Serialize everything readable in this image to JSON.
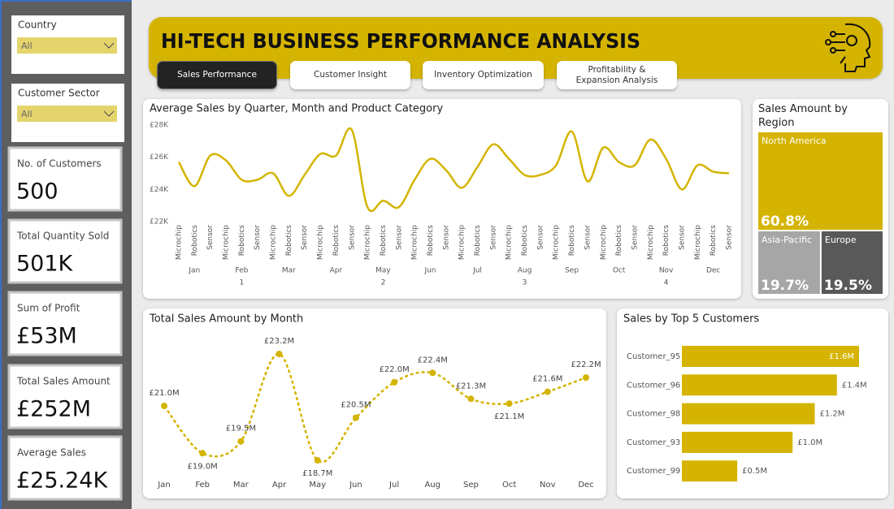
{
  "header": {
    "title": "HI-TECH BUSINESS PERFORMANCE ANALYSIS"
  },
  "tabs": [
    "Sales Performance",
    "Customer Insight",
    "Inventory Optimization",
    "Profitability & Expansion Analysis"
  ],
  "filters": [
    {
      "label": "Country",
      "value": "All"
    },
    {
      "label": "Customer Sector",
      "value": "All"
    }
  ],
  "kpis": [
    {
      "label": "No. of Customers",
      "value": "500"
    },
    {
      "label": "Total Quantity Sold",
      "value": "501K"
    },
    {
      "label": "Sum of Profit",
      "value": "£53M"
    },
    {
      "label": "Total Sales Amount",
      "value": "£252M"
    },
    {
      "label": "Average Sales",
      "value": "£25.24K"
    }
  ],
  "chart_data": [
    {
      "type": "line",
      "title": "Average Sales by Quarter, Month and Product Category",
      "color": "#d4b400",
      "categories": [
        "Microchip",
        "Robotics",
        "Sensor",
        "Microchip",
        "Robotics",
        "Sensor",
        "Microchip",
        "Robotics",
        "Sensor",
        "Microchip",
        "Robotics",
        "Sensor",
        "Microchip",
        "Robotics",
        "Sensor",
        "Microchip",
        "Robotics",
        "Sensor",
        "Microchip",
        "Robotics",
        "Sensor",
        "Microchip",
        "Robotics",
        "Sensor",
        "Microchip",
        "Robotics",
        "Sensor",
        "Microchip",
        "Robotics",
        "Sensor",
        "Microchip",
        "Robotics",
        "Sensor",
        "Microchip",
        "Robotics",
        "Sensor"
      ],
      "months": [
        "Jan",
        "Feb",
        "Mar",
        "Apr",
        "May",
        "Jun",
        "Jul",
        "Aug",
        "Sep",
        "Oct",
        "Nov",
        "Dec"
      ],
      "quarters": [
        "1",
        "2",
        "3",
        "4"
      ],
      "values": [
        25700,
        24200,
        26100,
        25800,
        24600,
        24600,
        25000,
        23600,
        24900,
        26200,
        26100,
        27700,
        22900,
        23300,
        22900,
        24600,
        25900,
        25200,
        24100,
        25400,
        26800,
        25900,
        24900,
        24900,
        25500,
        27600,
        24500,
        26600,
        25700,
        25500,
        27100,
        25900,
        24000,
        25500,
        25100,
        25000
      ],
      "ylim": [
        22000,
        28000
      ],
      "yticks": [
        {
          "value": 22000,
          "label": "£22K"
        },
        {
          "value": 24000,
          "label": "£24K"
        },
        {
          "value": 26000,
          "label": "£26K"
        },
        {
          "value": 28000,
          "label": "£28K"
        }
      ]
    },
    {
      "type": "treemap",
      "title": "Sales Amount by Region",
      "categories": [
        "North America",
        "Asia-Pacific",
        "Europe"
      ],
      "values": [
        60.8,
        19.7,
        19.5
      ],
      "value_labels": [
        "60.8%",
        "19.7%",
        "19.5%"
      ],
      "colors": [
        "#d4b400",
        "#a6a6a6",
        "#595959"
      ]
    },
    {
      "type": "line",
      "title": "Total Sales Amount by Month",
      "color": "#d4b400",
      "line_style": "dotted",
      "categories": [
        "Jan",
        "Feb",
        "Mar",
        "Apr",
        "May",
        "Jun",
        "Jul",
        "Aug",
        "Sep",
        "Oct",
        "Nov",
        "Dec"
      ],
      "values": [
        21.0,
        19.0,
        19.5,
        23.2,
        18.7,
        20.5,
        22.0,
        22.4,
        21.3,
        21.1,
        21.6,
        22.2
      ],
      "value_labels": [
        "£21.0M",
        "£19.0M",
        "£19.5M",
        "£23.2M",
        "£18.7M",
        "£20.5M",
        "£22.0M",
        "£22.4M",
        "£21.3M",
        "£21.1M",
        "£21.6M",
        "£22.2M"
      ]
    },
    {
      "type": "bar",
      "orientation": "horizontal",
      "title": "Sales by Top 5 Customers",
      "color": "#d4b400",
      "categories": [
        "Customer_95",
        "Customer_96",
        "Customer_98",
        "Customer_93",
        "Customer_99"
      ],
      "values": [
        1.6,
        1.4,
        1.2,
        1.0,
        0.5
      ],
      "value_labels": [
        "£1.6M",
        "£1.4M",
        "£1.2M",
        "£1.0M",
        "£0.5M"
      ]
    }
  ]
}
